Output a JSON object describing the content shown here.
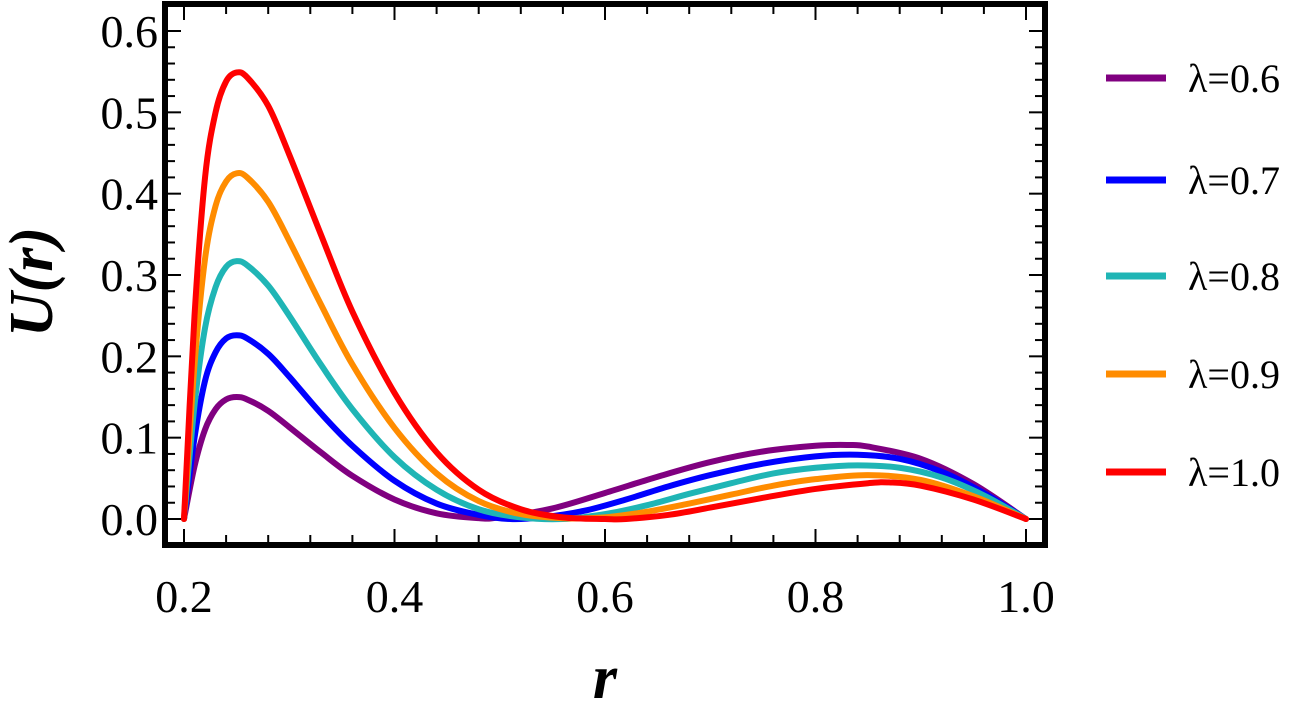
{
  "chart_data": {
    "type": "line",
    "title": "",
    "xlabel": "r",
    "ylabel": "U(r)",
    "xlim": [
      0.2,
      1.0
    ],
    "ylim": [
      0.0,
      0.6
    ],
    "xticks": [
      "0.2",
      "0.4",
      "0.6",
      "0.8",
      "1.0"
    ],
    "yticks": [
      "0.0",
      "0.1",
      "0.2",
      "0.3",
      "0.4",
      "0.5",
      "0.6"
    ],
    "grid": false,
    "legend_position": "right",
    "series": [
      {
        "name": "λ=0.6",
        "color": "#800080",
        "x": [
          0.2,
          0.21,
          0.22,
          0.23,
          0.24,
          0.25,
          0.26,
          0.28,
          0.3,
          0.33,
          0.36,
          0.4,
          0.44,
          0.48,
          0.5,
          0.55,
          0.6,
          0.65,
          0.7,
          0.75,
          0.8,
          0.83,
          0.85,
          0.9,
          0.95,
          1.0
        ],
        "y": [
          0.0,
          0.065,
          0.11,
          0.135,
          0.147,
          0.15,
          0.147,
          0.133,
          0.113,
          0.082,
          0.053,
          0.024,
          0.007,
          0.001,
          0.002,
          0.013,
          0.032,
          0.052,
          0.07,
          0.083,
          0.09,
          0.091,
          0.089,
          0.074,
          0.043,
          0.0
        ]
      },
      {
        "name": "λ=0.7",
        "color": "#0000ff",
        "x": [
          0.2,
          0.21,
          0.22,
          0.23,
          0.24,
          0.25,
          0.26,
          0.28,
          0.3,
          0.33,
          0.36,
          0.4,
          0.44,
          0.48,
          0.51,
          0.54,
          0.58,
          0.62,
          0.66,
          0.7,
          0.75,
          0.8,
          0.84,
          0.88,
          0.92,
          0.96,
          1.0
        ],
        "y": [
          0.0,
          0.1,
          0.17,
          0.205,
          0.222,
          0.226,
          0.222,
          0.203,
          0.175,
          0.13,
          0.09,
          0.047,
          0.019,
          0.005,
          0.0,
          0.002,
          0.01,
          0.024,
          0.04,
          0.054,
          0.068,
          0.077,
          0.079,
          0.074,
          0.058,
          0.032,
          0.0
        ]
      },
      {
        "name": "λ=0.8",
        "color": "#1fb5b5",
        "x": [
          0.2,
          0.21,
          0.22,
          0.23,
          0.24,
          0.25,
          0.26,
          0.28,
          0.3,
          0.33,
          0.36,
          0.4,
          0.44,
          0.48,
          0.52,
          0.56,
          0.6,
          0.64,
          0.68,
          0.72,
          0.76,
          0.8,
          0.84,
          0.88,
          0.92,
          0.96,
          1.0
        ],
        "y": [
          0.0,
          0.14,
          0.235,
          0.285,
          0.31,
          0.317,
          0.312,
          0.287,
          0.25,
          0.19,
          0.135,
          0.076,
          0.036,
          0.012,
          0.002,
          0.0,
          0.006,
          0.017,
          0.031,
          0.044,
          0.056,
          0.063,
          0.066,
          0.063,
          0.051,
          0.029,
          0.0
        ]
      },
      {
        "name": "λ=0.9",
        "color": "#ff8c00",
        "x": [
          0.2,
          0.21,
          0.22,
          0.23,
          0.24,
          0.25,
          0.26,
          0.28,
          0.3,
          0.33,
          0.36,
          0.4,
          0.44,
          0.48,
          0.52,
          0.56,
          0.6,
          0.64,
          0.68,
          0.72,
          0.76,
          0.8,
          0.85,
          0.9,
          0.95,
          1.0
        ],
        "y": [
          0.0,
          0.19,
          0.32,
          0.385,
          0.415,
          0.425,
          0.42,
          0.39,
          0.342,
          0.264,
          0.19,
          0.112,
          0.056,
          0.022,
          0.006,
          0.001,
          0.002,
          0.009,
          0.019,
          0.03,
          0.041,
          0.049,
          0.054,
          0.048,
          0.028,
          0.0
        ]
      },
      {
        "name": "λ=1.0",
        "color": "#ff0000",
        "x": [
          0.2,
          0.21,
          0.22,
          0.23,
          0.24,
          0.25,
          0.26,
          0.28,
          0.3,
          0.33,
          0.36,
          0.4,
          0.44,
          0.48,
          0.52,
          0.56,
          0.6,
          0.62,
          0.66,
          0.7,
          0.75,
          0.8,
          0.85,
          0.87,
          0.9,
          0.95,
          1.0
        ],
        "y": [
          0.0,
          0.25,
          0.42,
          0.5,
          0.538,
          0.549,
          0.543,
          0.508,
          0.448,
          0.35,
          0.255,
          0.155,
          0.082,
          0.036,
          0.012,
          0.002,
          0.0,
          0.0,
          0.005,
          0.014,
          0.026,
          0.037,
          0.044,
          0.045,
          0.041,
          0.024,
          0.0
        ]
      }
    ]
  }
}
